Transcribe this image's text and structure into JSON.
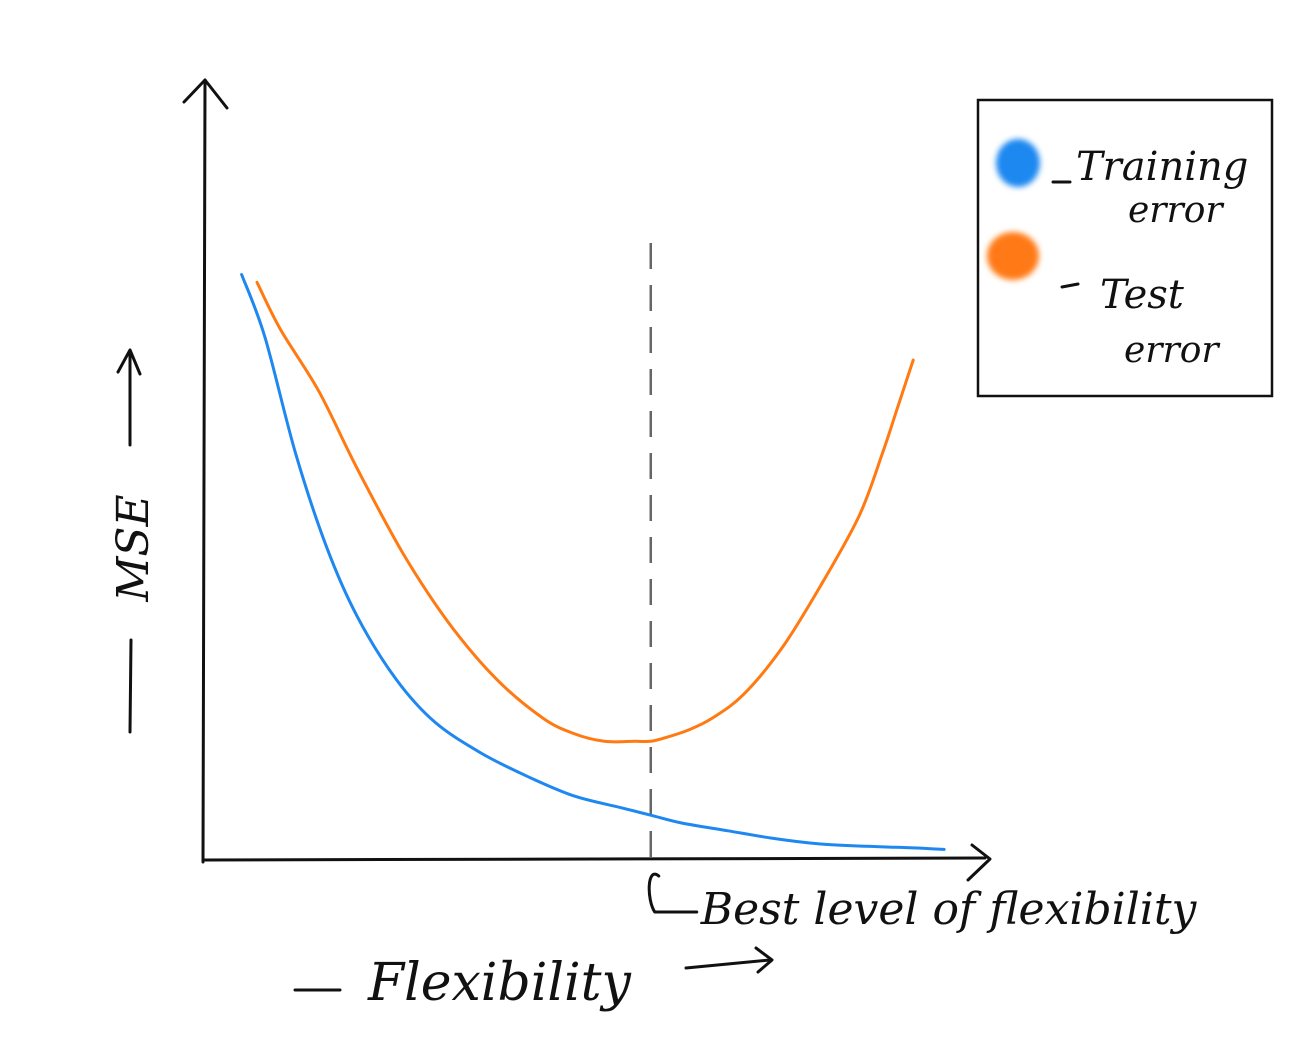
{
  "colors": {
    "training": "#1e88f0",
    "test": "#ff7a12",
    "ink": "#111111",
    "guide": "#666666"
  },
  "chart_data": {
    "type": "line",
    "title": "",
    "xlabel": "Flexibility",
    "ylabel": "MSE",
    "xlim": [
      0,
      100
    ],
    "ylim": [
      0,
      100
    ],
    "grid": false,
    "legend": {
      "position": "top-right",
      "entries": [
        {
          "line1": "Training",
          "line2": "error",
          "color": "#1e88f0"
        },
        {
          "line1": "Test",
          "line2": "error",
          "color": "#ff7a12"
        }
      ]
    },
    "annotation": {
      "text": "Best level of flexibility",
      "x": 58
    },
    "series": [
      {
        "name": "Training error",
        "color": "#1e88f0",
        "x": [
          5,
          8,
          12,
          16,
          20,
          25,
          30,
          36,
          42,
          48,
          54,
          58,
          62,
          68,
          74,
          80,
          86,
          92,
          96
        ],
        "y": [
          75,
          67,
          52,
          40,
          31,
          23,
          17.5,
          13.5,
          10.5,
          8,
          6.5,
          5.5,
          4.5,
          3.5,
          2.5,
          1.8,
          1.5,
          1.3,
          1.1
        ]
      },
      {
        "name": "Test error",
        "color": "#ff7a12",
        "x": [
          7,
          10,
          15,
          20,
          26,
          32,
          38,
          44,
          48,
          52,
          56,
          58,
          60,
          63,
          66,
          70,
          75,
          80,
          85,
          88,
          90,
          92
        ],
        "y": [
          74,
          68,
          60,
          50,
          39,
          30,
          23,
          18,
          16,
          15,
          15,
          15,
          15.5,
          16.5,
          18,
          21,
          27,
          35,
          44,
          52,
          58,
          64
        ]
      }
    ]
  }
}
